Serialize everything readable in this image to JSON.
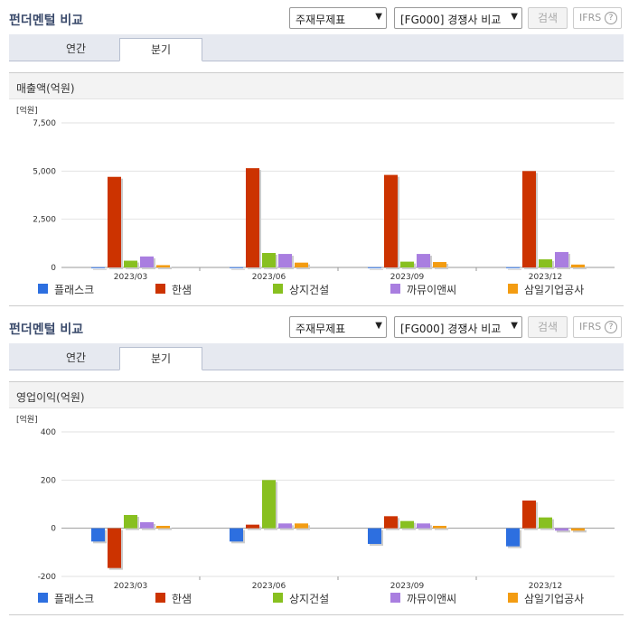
{
  "sections": [
    {
      "title": "펀더멘털 비교",
      "select1": "주재무제표",
      "select2": "[FG000] 경쟁사 비교",
      "search_label": "검색",
      "ifrs_label": "IFRS",
      "tabs": [
        "연간",
        "분기"
      ],
      "active_tab": "분기",
      "metric": "매출액(억원)"
    },
    {
      "title": "펀더멘털 비교",
      "select1": "주재무제표",
      "select2": "[FG000] 경쟁사 비교",
      "search_label": "검색",
      "ifrs_label": "IFRS",
      "tabs": [
        "연간",
        "분기"
      ],
      "active_tab": "분기",
      "metric": "영업이익(억원)"
    }
  ],
  "colors": {
    "series": [
      "#2d6fe0",
      "#cc3300",
      "#88c020",
      "#a97ee0",
      "#f39c12"
    ]
  },
  "chart_data": [
    {
      "type": "bar",
      "unit": "[억원]",
      "categories": [
        "2023/03",
        "2023/06",
        "2023/09",
        "2023/12"
      ],
      "ylim": [
        0,
        7500
      ],
      "yticks": [
        0,
        2500,
        5000,
        7500
      ],
      "ytick_labels": [
        "0",
        "2,500",
        "5,000",
        "7,500"
      ],
      "series": [
        {
          "name": "플래스크",
          "values": [
            10,
            12,
            11,
            12
          ]
        },
        {
          "name": "한샘",
          "values": [
            4700,
            5150,
            4800,
            5000
          ]
        },
        {
          "name": "상지건설",
          "values": [
            350,
            750,
            300,
            420
          ]
        },
        {
          "name": "까뮤이앤씨",
          "values": [
            570,
            700,
            700,
            800
          ]
        },
        {
          "name": "삼일기업공사",
          "values": [
            120,
            250,
            280,
            150
          ]
        }
      ]
    },
    {
      "type": "bar",
      "unit": "[억원]",
      "categories": [
        "2023/03",
        "2023/06",
        "2023/09",
        "2023/12"
      ],
      "ylim": [
        -200,
        400
      ],
      "yticks": [
        -200,
        0,
        200,
        400
      ],
      "ytick_labels": [
        "-200",
        "0",
        "200",
        "400"
      ],
      "series": [
        {
          "name": "플래스크",
          "values": [
            -55,
            -55,
            -65,
            -75
          ]
        },
        {
          "name": "한샘",
          "values": [
            -165,
            15,
            50,
            115
          ]
        },
        {
          "name": "상지건설",
          "values": [
            55,
            200,
            30,
            45
          ]
        },
        {
          "name": "까뮤이앤씨",
          "values": [
            25,
            20,
            20,
            -10
          ]
        },
        {
          "name": "삼일기업공사",
          "values": [
            10,
            20,
            10,
            -10
          ]
        }
      ]
    }
  ]
}
